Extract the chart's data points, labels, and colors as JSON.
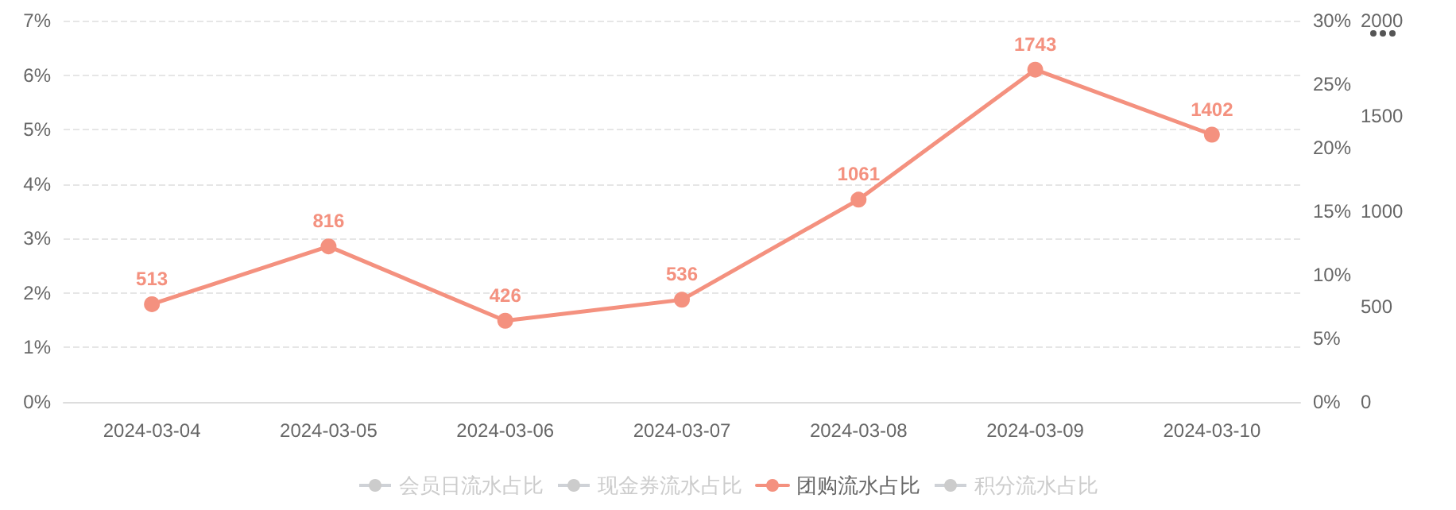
{
  "chart_data": {
    "type": "line",
    "categories": [
      "2024-03-04",
      "2024-03-05",
      "2024-03-06",
      "2024-03-07",
      "2024-03-08",
      "2024-03-09",
      "2024-03-10"
    ],
    "series": [
      {
        "name": "会员日流水占比",
        "color": "#cccccc",
        "values": [
          null,
          null,
          null,
          null,
          null,
          null,
          null
        ]
      },
      {
        "name": "现金券流水占比",
        "color": "#cccccc",
        "values": [
          null,
          null,
          null,
          null,
          null,
          null,
          null
        ]
      },
      {
        "name": "团购流水占比",
        "color": "#f4917f",
        "axis": "y3",
        "values": [
          513,
          816,
          426,
          536,
          1061,
          1743,
          1402
        ]
      },
      {
        "name": "积分流水占比",
        "color": "#cccccc",
        "values": [
          null,
          null,
          null,
          null,
          null,
          null,
          null
        ]
      }
    ],
    "ylim": [
      0,
      7
    ],
    "yticks": [
      {
        "value": 0,
        "label": "0%"
      },
      {
        "value": 1,
        "label": "1%"
      },
      {
        "value": 2,
        "label": "2%"
      },
      {
        "value": 3,
        "label": "3%"
      },
      {
        "value": 4,
        "label": "4%"
      },
      {
        "value": 5,
        "label": "5%"
      },
      {
        "value": 6,
        "label": "6%"
      },
      {
        "value": 7,
        "label": "7%"
      }
    ],
    "y2lim": [
      0,
      30
    ],
    "y2ticks": [
      {
        "value": 0,
        "label": "0%"
      },
      {
        "value": 5,
        "label": "5%"
      },
      {
        "value": 10,
        "label": "10%"
      },
      {
        "value": 15,
        "label": "15%"
      },
      {
        "value": 20,
        "label": "20%"
      },
      {
        "value": 25,
        "label": "25%"
      },
      {
        "value": 30,
        "label": "30%"
      }
    ],
    "y3lim": [
      0,
      2000
    ],
    "y3ticks": [
      0,
      500,
      1000,
      1500,
      2000
    ],
    "grid": "y",
    "legend": "bottom",
    "marker": "circle",
    "line_style": "solid",
    "data_labels": true
  }
}
